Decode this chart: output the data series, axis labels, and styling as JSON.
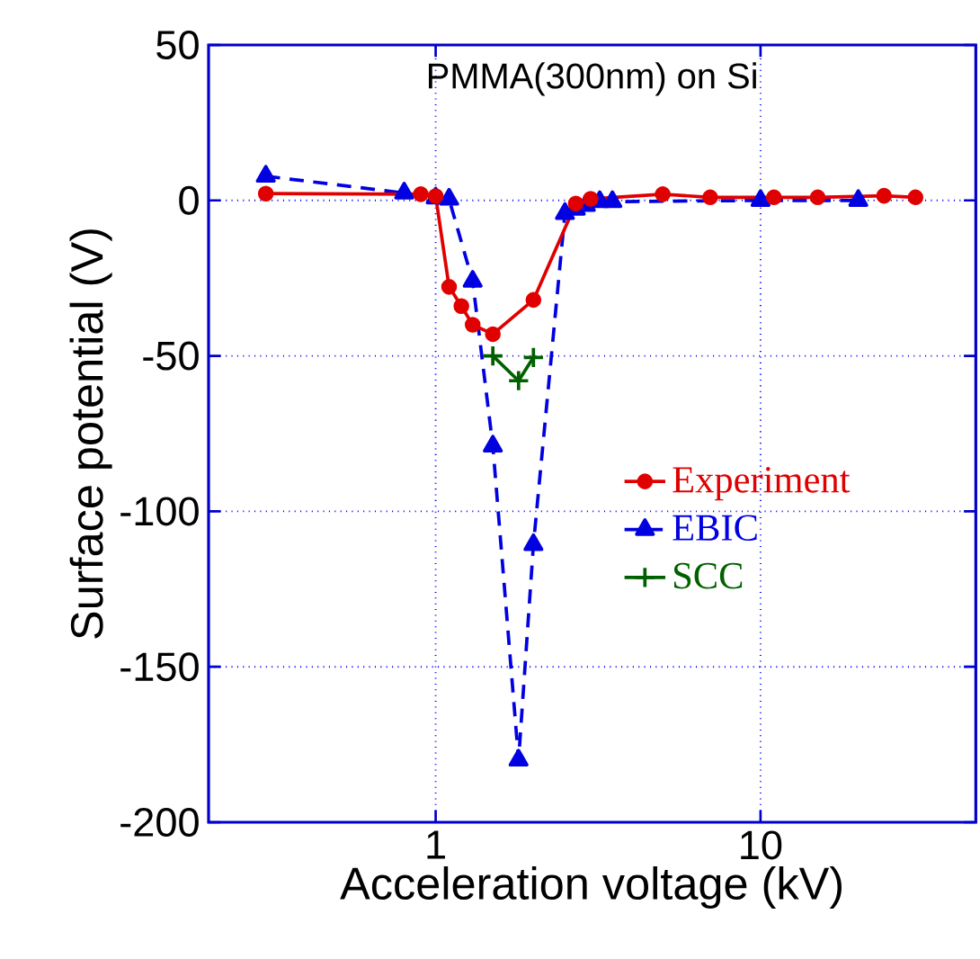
{
  "chart_data": {
    "type": "line",
    "title": "PMMA(300nm) on Si",
    "xlabel": "Acceleration voltage  (kV)",
    "ylabel": "Surface potential  (V)",
    "log": "x",
    "xlim": [
      0.2,
      46
    ],
    "ylim": [
      -200,
      50
    ],
    "xticks": [
      1,
      10
    ],
    "yticks": [
      -200,
      -150,
      -100,
      -50,
      0,
      50
    ],
    "grid": true,
    "legend": "right",
    "series": [
      {
        "name": "Experiment",
        "color": "#e00000",
        "marker": "circle",
        "line_style": "solid",
        "x": [
          0.3,
          0.9,
          1.0,
          1.1,
          1.2,
          1.3,
          1.5,
          2.0,
          2.7,
          3.0,
          5.0,
          7.0,
          11,
          15,
          24,
          30
        ],
        "values": [
          2.2,
          2,
          1.4,
          -27.8,
          -34,
          -40,
          -43,
          -32,
          -1,
          0.5,
          2,
          1,
          1,
          1,
          1.5,
          1
        ]
      },
      {
        "name": "EBIC",
        "color": "#0000e0",
        "marker": "triangle",
        "line_style": "dashed",
        "x": [
          0.3,
          0.8,
          1.0,
          1.1,
          1.3,
          1.5,
          1.8,
          2.0,
          2.5,
          2.7,
          2.9,
          3.2,
          3.5,
          10,
          20
        ],
        "values": [
          7.8,
          2.4,
          0.8,
          0.4,
          -26,
          -79,
          -180,
          -110.7,
          -4.2,
          -2.8,
          -1.6,
          -0.4,
          -0.4,
          0,
          0
        ]
      },
      {
        "name": "SCC",
        "color": "#006000",
        "marker": "cross",
        "line_style": "solid",
        "x": [
          1.5,
          1.8,
          2.0
        ],
        "values": [
          -50,
          -58,
          -50.5
        ]
      }
    ]
  }
}
